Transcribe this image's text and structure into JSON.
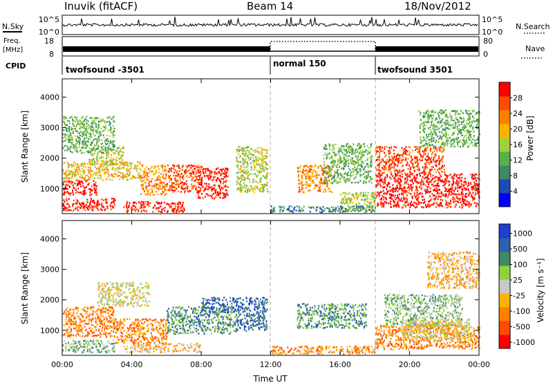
{
  "header": {
    "station": "Inuvik (fitACF)",
    "beam": "Beam 14",
    "date": "18/Nov/2012"
  },
  "top_panels": {
    "nsky_label": "N.Sky",
    "nsky_ticks": [
      "10^5",
      "10^0"
    ],
    "nsearch_label": "N.Search",
    "nsearch_ticks": [
      "10^5",
      "10^0"
    ],
    "freq_label_line1": "Freq.",
    "freq_label_line2": "[MHz]",
    "freq_ticks": [
      "18",
      "8"
    ],
    "nave_label": "Nave",
    "nave_ticks": [
      "80",
      "0"
    ],
    "cpid_label": "CPID",
    "cpid_segments": [
      {
        "label": "twofsound -3501",
        "start": "00:00",
        "end": "12:00"
      },
      {
        "label": "normal 150",
        "start": "12:00",
        "end": "18:00"
      },
      {
        "label": "twofsound 3501",
        "start": "18:00",
        "end": "24:00"
      }
    ]
  },
  "colors": {
    "power_scale": [
      "#0000ff",
      "#1f4bb0",
      "#3d8a66",
      "#58b04a",
      "#9fd23a",
      "#ffb300",
      "#ff8000",
      "#ff4a00",
      "#ff0000"
    ],
    "velocity_scale": [
      "#ff0000",
      "#ff4a00",
      "#ff8000",
      "#ffb000",
      "#c8c8c8",
      "#8fd23a",
      "#3d8a66",
      "#2f5fb0",
      "#1f3fd0"
    ]
  },
  "chart_data": [
    {
      "type": "heatmap",
      "title": "Power",
      "xlabel": "",
      "ylabel": "Slant Range [km]",
      "x_ticks": [
        "00:00",
        "04:00",
        "08:00",
        "12:00",
        "16:00",
        "20:00",
        "00:00"
      ],
      "y_ticks": [
        "1000",
        "2000",
        "3000",
        "4000"
      ],
      "ylim": [
        180,
        4600
      ],
      "colorbar_label": "Power [dB]",
      "colorbar_ticks": [
        "4",
        "8",
        "12",
        "16",
        "20",
        "24",
        "28"
      ],
      "blobs": [
        {
          "t": [
            0.0,
            2.0
          ],
          "r": [
            800,
            1300
          ],
          "level": 8
        },
        {
          "t": [
            0.0,
            4.5
          ],
          "r": [
            1300,
            1900
          ],
          "level": 5
        },
        {
          "t": [
            1.5,
            3.5
          ],
          "r": [
            1800,
            2400
          ],
          "level": 4
        },
        {
          "t": [
            0.0,
            3.0
          ],
          "r": [
            300,
            700
          ],
          "level": 8
        },
        {
          "t": [
            3.5,
            7.0
          ],
          "r": [
            250,
            600
          ],
          "level": 8
        },
        {
          "t": [
            4.5,
            6.0
          ],
          "r": [
            800,
            1800
          ],
          "level": 6
        },
        {
          "t": [
            6.0,
            8.0
          ],
          "r": [
            900,
            1800
          ],
          "level": 7
        },
        {
          "t": [
            7.8,
            9.5
          ],
          "r": [
            700,
            1700
          ],
          "level": 8
        },
        {
          "t": [
            10.0,
            11.8
          ],
          "r": [
            900,
            2400
          ],
          "level": 4
        },
        {
          "t": [
            13.5,
            15.5
          ],
          "r": [
            900,
            1800
          ],
          "level": 6
        },
        {
          "t": [
            15.0,
            17.8
          ],
          "r": [
            1200,
            2500
          ],
          "level": 3
        },
        {
          "t": [
            16.0,
            18.0
          ],
          "r": [
            300,
            900
          ],
          "level": 4
        },
        {
          "t": [
            12.0,
            18.0
          ],
          "r": [
            250,
            450
          ],
          "level": 2
        },
        {
          "t": [
            18.0,
            24.0
          ],
          "r": [
            400,
            1500
          ],
          "level": 8
        },
        {
          "t": [
            18.0,
            22.0
          ],
          "r": [
            1500,
            2400
          ],
          "level": 7
        },
        {
          "t": [
            20.5,
            24.0
          ],
          "r": [
            2400,
            3600
          ],
          "level": 3
        },
        {
          "t": [
            0.0,
            3.0
          ],
          "r": [
            2200,
            3400
          ],
          "level": 3
        }
      ]
    },
    {
      "type": "heatmap",
      "title": "Velocity",
      "xlabel": "Time UT",
      "ylabel": "Slant Range [km]",
      "x_ticks": [
        "00:00",
        "04:00",
        "08:00",
        "12:00",
        "16:00",
        "20:00",
        "00:00"
      ],
      "y_ticks": [
        "1000",
        "2000",
        "3000",
        "4000"
      ],
      "ylim": [
        180,
        4600
      ],
      "colorbar_label": "Velocity [m s⁻¹]",
      "colorbar_ticks": [
        "1000",
        "500",
        "100",
        "25",
        "-25",
        "-100",
        "-500",
        "-1000"
      ],
      "blobs": [
        {
          "t": [
            0.0,
            3.0
          ],
          "r": [
            800,
            1800
          ],
          "level": 2
        },
        {
          "t": [
            2.0,
            5.0
          ],
          "r": [
            1800,
            2600
          ],
          "level": 4
        },
        {
          "t": [
            0.0,
            3.0
          ],
          "r": [
            300,
            700
          ],
          "level": 5
        },
        {
          "t": [
            3.0,
            6.0
          ],
          "r": [
            600,
            1400
          ],
          "level": 2
        },
        {
          "t": [
            6.0,
            10.0
          ],
          "r": [
            900,
            1800
          ],
          "level": 6
        },
        {
          "t": [
            8.0,
            10.0
          ],
          "r": [
            1600,
            2100
          ],
          "level": 7
        },
        {
          "t": [
            3.5,
            8.0
          ],
          "r": [
            300,
            600
          ],
          "level": 3
        },
        {
          "t": [
            10.0,
            11.8
          ],
          "r": [
            1000,
            2100
          ],
          "level": 7
        },
        {
          "t": [
            13.5,
            17.5
          ],
          "r": [
            1100,
            1900
          ],
          "level": 6
        },
        {
          "t": [
            12.0,
            18.0
          ],
          "r": [
            250,
            500
          ],
          "level": 2
        },
        {
          "t": [
            18.0,
            24.0
          ],
          "r": [
            400,
            1200
          ],
          "level": 2
        },
        {
          "t": [
            18.5,
            23.0
          ],
          "r": [
            1200,
            2200
          ],
          "level": 5
        },
        {
          "t": [
            19.5,
            23.5
          ],
          "r": [
            700,
            1400
          ],
          "level": 4
        },
        {
          "t": [
            21.0,
            24.0
          ],
          "r": [
            2400,
            3600
          ],
          "level": 3
        }
      ]
    }
  ]
}
